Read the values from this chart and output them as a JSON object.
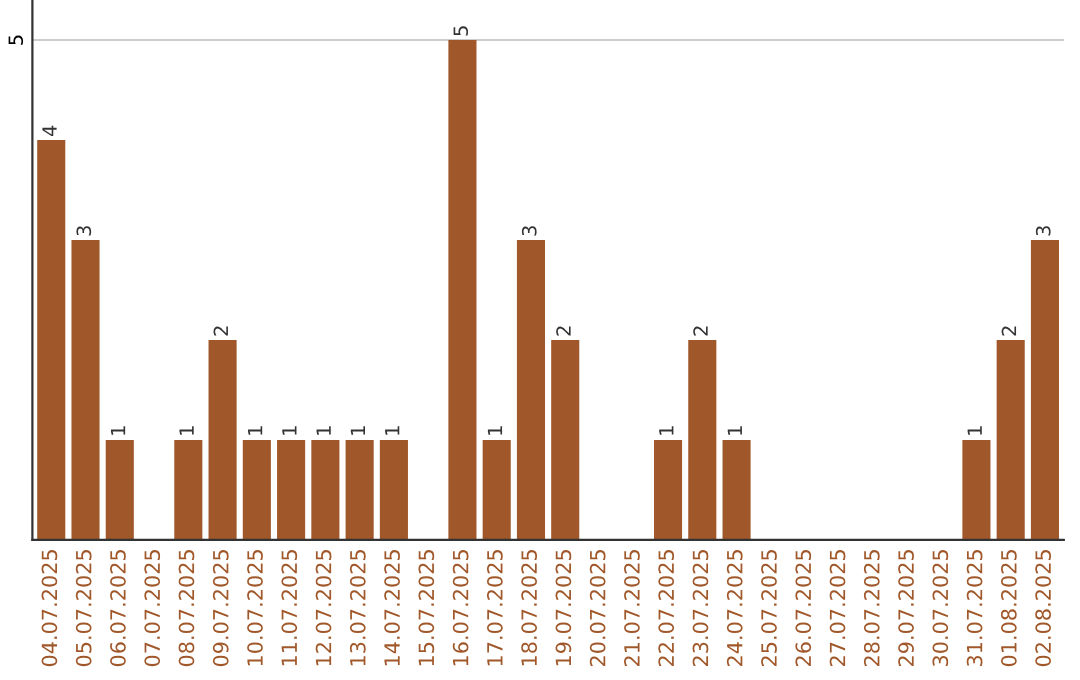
{
  "chart_data": {
    "type": "bar",
    "categories": [
      "04.07.2025",
      "05.07.2025",
      "06.07.2025",
      "07.07.2025",
      "08.07.2025",
      "09.07.2025",
      "10.07.2025",
      "11.07.2025",
      "12.07.2025",
      "13.07.2025",
      "14.07.2025",
      "15.07.2025",
      "16.07.2025",
      "17.07.2025",
      "18.07.2025",
      "19.07.2025",
      "20.07.2025",
      "21.07.2025",
      "22.07.2025",
      "23.07.2025",
      "24.07.2025",
      "25.07.2025",
      "26.07.2025",
      "27.07.2025",
      "28.07.2025",
      "29.07.2025",
      "30.07.2025",
      "31.07.2025",
      "01.08.2025",
      "02.08.2025"
    ],
    "values": [
      4,
      3,
      1,
      0,
      1,
      2,
      1,
      1,
      1,
      1,
      1,
      0,
      5,
      1,
      3,
      2,
      0,
      0,
      1,
      2,
      1,
      0,
      0,
      0,
      0,
      0,
      0,
      1,
      2,
      3
    ],
    "value_labels": [
      "4",
      "3",
      "1",
      null,
      "1",
      "2",
      "1",
      "1",
      "1",
      "1",
      "1",
      null,
      "5",
      "1",
      "3",
      "2",
      null,
      null,
      "1",
      "2",
      "1",
      null,
      null,
      null,
      null,
      null,
      null,
      "1",
      "2",
      "3"
    ],
    "color": "#a0582a",
    "ylim": [
      0,
      5.4
    ],
    "yticks": [
      5
    ],
    "grid": "y"
  }
}
